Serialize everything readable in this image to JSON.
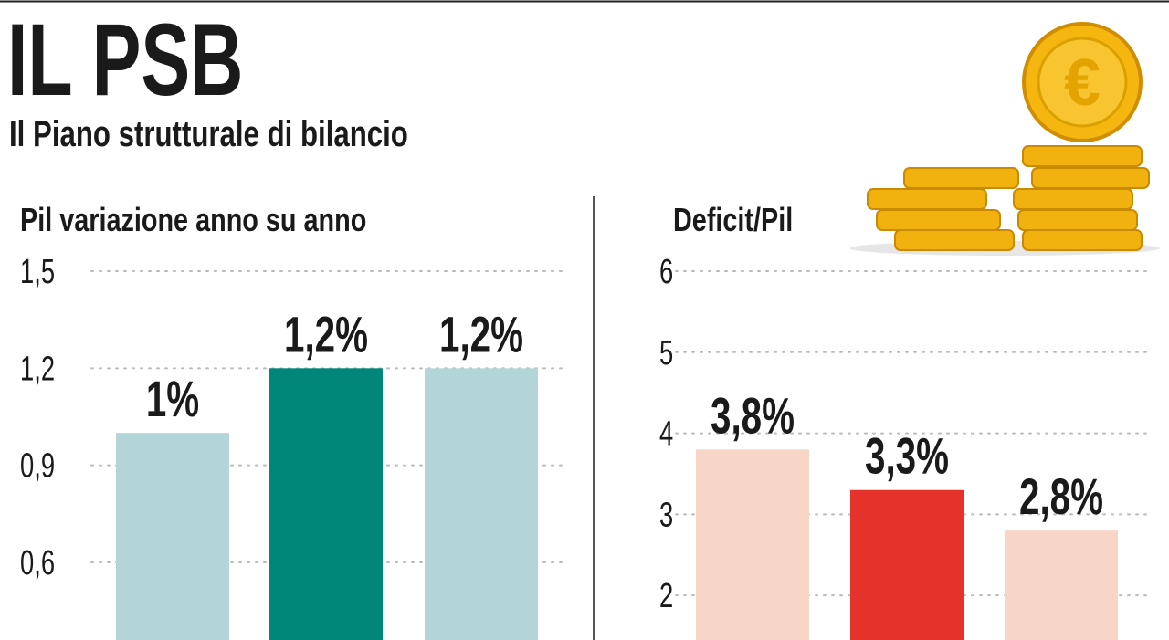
{
  "title": "IL PSB",
  "subtitle": "Il Piano strutturale di bilancio",
  "chart_data": [
    {
      "type": "bar",
      "title": "Pil variazione anno su anno",
      "categories": [
        null,
        null,
        null
      ],
      "values": [
        1,
        1.2,
        1.2
      ],
      "value_labels": [
        "1%",
        "1,2%",
        "1,2%"
      ],
      "colors": [
        "#b3d5d8",
        "#00877a",
        "#b3d5d8"
      ],
      "ylim": [
        0.36,
        1.5
      ],
      "yticks": [
        {
          "value": 0.6,
          "label": "0,6"
        },
        {
          "value": 0.9,
          "label": "0,9"
        },
        {
          "value": 1.2,
          "label": "1,2"
        },
        {
          "value": 1.5,
          "label": "1,5"
        }
      ],
      "grid": true
    },
    {
      "type": "bar",
      "title": "Deficit/Pil",
      "categories": [
        null,
        null,
        null
      ],
      "values": [
        3.8,
        3.3,
        2.8
      ],
      "value_labels": [
        "3,8%",
        "3,3%",
        "2,8%"
      ],
      "colors": [
        "#f7d5c7",
        "#e5322b",
        "#f7d5c7"
      ],
      "ylim": [
        1.45,
        6
      ],
      "yticks": [
        2,
        3,
        4,
        5,
        6
      ],
      "grid": true
    }
  ]
}
